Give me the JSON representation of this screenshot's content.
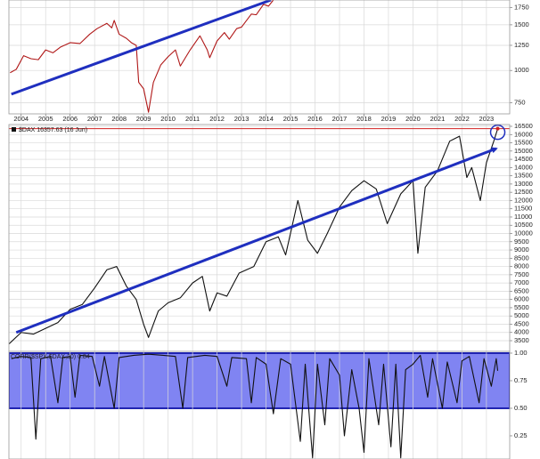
{
  "chart_data": [
    {
      "type": "line",
      "log_scale": true,
      "grid": true,
      "xlim": [
        2003.5,
        2023.95
      ],
      "xticks": [
        2004,
        2005,
        2006,
        2007,
        2008,
        2009,
        2010,
        2011,
        2012,
        2013,
        2014,
        2015,
        2016,
        2017,
        2018,
        2019,
        2020,
        2021,
        2022,
        2023
      ],
      "ylim": [
        680,
        1870
      ],
      "yticks": [
        750,
        1000,
        1250,
        1500,
        1750
      ],
      "color": "#b01818",
      "x": [
        2003.55,
        2003.8,
        2004.1,
        2004.4,
        2004.7,
        2005.0,
        2005.3,
        2005.6,
        2006.0,
        2006.4,
        2006.8,
        2007.1,
        2007.5,
        2007.7,
        2007.8,
        2008.0,
        2008.3,
        2008.5,
        2008.7,
        2008.8,
        2009.0,
        2009.2,
        2009.4,
        2009.7,
        2010.0,
        2010.3,
        2010.5,
        2010.9,
        2011.3,
        2011.6,
        2011.7,
        2012.0,
        2012.3,
        2012.5,
        2012.8,
        2013.0,
        2013.4,
        2013.6,
        2013.9,
        2014.1,
        2014.3
      ],
      "values": [
        980,
        1010,
        1140,
        1110,
        1100,
        1200,
        1170,
        1230,
        1280,
        1270,
        1380,
        1450,
        1520,
        1460,
        1560,
        1380,
        1330,
        1280,
        1250,
        900,
        850,
        690,
        900,
        1050,
        1130,
        1200,
        1040,
        1200,
        1360,
        1200,
        1120,
        1300,
        1400,
        1320,
        1450,
        1470,
        1650,
        1640,
        1800,
        1770,
        1870
      ],
      "trendline": {
        "x": [
          2003.6,
          2014.2
        ],
        "values": [
          810,
          1870
        ],
        "color": "#1f2fbf"
      }
    },
    {
      "type": "line",
      "grid": true,
      "label": "$DAX 16357.63 (16 Jun)",
      "xlim": [
        2003.5,
        2023.95
      ],
      "ylim": [
        2853,
        16608
      ],
      "yticks": [
        3500,
        4000,
        4500,
        5000,
        5500,
        6000,
        6500,
        7000,
        7500,
        8000,
        8500,
        9000,
        9500,
        10000,
        10500,
        11000,
        11500,
        12000,
        12500,
        13000,
        13500,
        14000,
        14500,
        15000,
        15500,
        16000,
        16500
      ],
      "color": "#111111",
      "x": [
        2003.5,
        2004.0,
        2004.5,
        2005.0,
        2005.5,
        2006.0,
        2006.5,
        2007.0,
        2007.5,
        2007.9,
        2008.3,
        2008.7,
        2009.0,
        2009.2,
        2009.6,
        2010.0,
        2010.5,
        2011.0,
        2011.4,
        2011.7,
        2012.0,
        2012.4,
        2012.9,
        2013.5,
        2014.0,
        2014.5,
        2014.8,
        2015.3,
        2015.7,
        2016.1,
        2016.5,
        2017.0,
        2017.5,
        2018.0,
        2018.5,
        2018.95,
        2019.5,
        2020.0,
        2020.2,
        2020.5,
        2021.0,
        2021.5,
        2021.9,
        2022.2,
        2022.4,
        2022.75,
        2023.0,
        2023.3,
        2023.46
      ],
      "values": [
        3300,
        4000,
        3900,
        4250,
        4600,
        5400,
        5700,
        6700,
        7800,
        8000,
        6800,
        6000,
        4500,
        3700,
        5300,
        5800,
        6100,
        7000,
        7400,
        5300,
        6400,
        6200,
        7600,
        8000,
        9500,
        9800,
        8700,
        12000,
        9600,
        8800,
        10000,
        11600,
        12600,
        13200,
        12700,
        10600,
        12400,
        13200,
        8800,
        12800,
        13800,
        15600,
        15900,
        13400,
        14000,
        12000,
        14300,
        15600,
        16357.63
      ],
      "reference_line": {
        "value": 16357.63,
        "color": "#d02020"
      },
      "trendline": {
        "x": [
          2003.8,
          2023.4
        ],
        "values": [
          4000,
          15150
        ],
        "color": "#1f2fbf"
      }
    },
    {
      "type": "line",
      "grid": true,
      "label": "CORR($SPX,$DAX,20) 0.84",
      "xlim": [
        2003.5,
        2023.95
      ],
      "ylim": [
        0.04,
        1.016
      ],
      "yticks": [
        {
          "value": 1,
          "label": "1.00"
        },
        {
          "value": 0.75,
          "label": "0.75"
        },
        {
          "value": 0.5,
          "label": "0.50"
        },
        {
          "value": 0.25,
          "label": "0.25"
        }
      ],
      "band": {
        "range": [
          0.5,
          1
        ],
        "color": "#6a6ff0",
        "border": "#1e22b0"
      },
      "color": "#111111",
      "x": [
        2003.6,
        2004.0,
        2004.4,
        2004.6,
        2004.8,
        2005.2,
        2005.5,
        2005.7,
        2006.0,
        2006.2,
        2006.4,
        2006.9,
        2007.2,
        2007.4,
        2007.8,
        2008.0,
        2008.6,
        2009.2,
        2009.8,
        2010.3,
        2010.6,
        2010.8,
        2011.5,
        2012.0,
        2012.4,
        2012.6,
        2013.2,
        2013.4,
        2013.6,
        2014.0,
        2014.3,
        2014.6,
        2015.0,
        2015.4,
        2015.6,
        2015.9,
        2016.1,
        2016.4,
        2016.6,
        2017.0,
        2017.2,
        2017.5,
        2017.8,
        2018.0,
        2018.2,
        2018.6,
        2018.8,
        2019.1,
        2019.3,
        2019.5,
        2019.7,
        2020.0,
        2020.3,
        2020.6,
        2020.8,
        2021.2,
        2021.4,
        2021.8,
        2022.0,
        2022.3,
        2022.7,
        2022.9,
        2023.2,
        2023.4,
        2023.46
      ],
      "values": [
        0.95,
        0.97,
        0.96,
        0.22,
        0.95,
        0.97,
        0.55,
        0.96,
        0.97,
        0.6,
        0.98,
        0.97,
        0.7,
        0.97,
        0.5,
        0.96,
        0.98,
        0.99,
        0.98,
        0.97,
        0.5,
        0.96,
        0.98,
        0.97,
        0.7,
        0.96,
        0.95,
        0.55,
        0.96,
        0.9,
        0.45,
        0.95,
        0.9,
        0.2,
        0.9,
        0.05,
        0.9,
        0.35,
        0.95,
        0.8,
        0.25,
        0.85,
        0.5,
        0.1,
        0.95,
        0.35,
        0.9,
        0.15,
        0.9,
        0.05,
        0.85,
        0.9,
        0.98,
        0.6,
        0.95,
        0.5,
        0.92,
        0.55,
        0.93,
        0.97,
        0.55,
        0.95,
        0.7,
        0.95,
        0.84
      ]
    }
  ]
}
